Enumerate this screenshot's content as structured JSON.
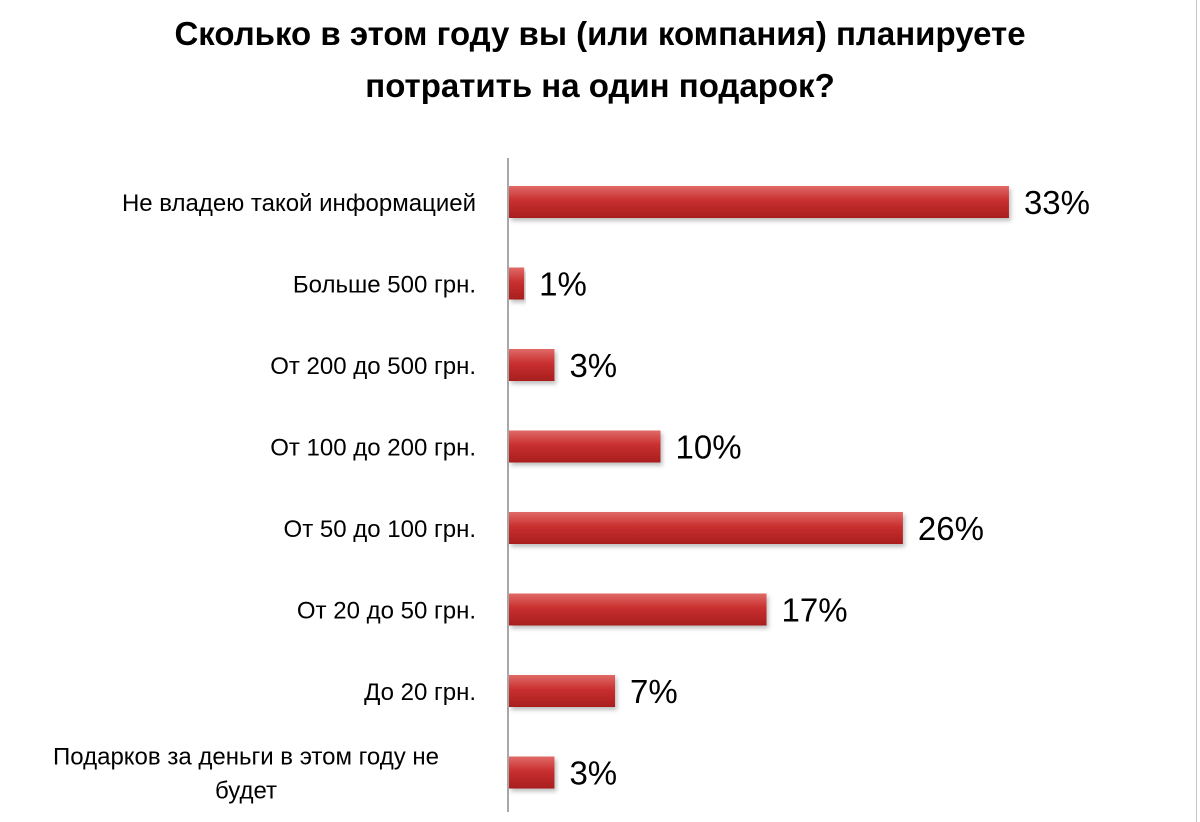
{
  "chart_data": {
    "type": "bar",
    "orientation": "horizontal",
    "title_lines": [
      "Сколько в этом году вы (или компания) планируете",
      "потратить на один подарок?"
    ],
    "categories": [
      [
        "Не владею такой информацией"
      ],
      [
        "Больше 500 грн."
      ],
      [
        "От 200 до 500 грн."
      ],
      [
        "От 100 до 200 грн."
      ],
      [
        "От 50 до 100 грн."
      ],
      [
        "От 20 до 50 грн."
      ],
      [
        "До 20 грн."
      ],
      [
        "Подарков за деньги в этом году не",
        "будет"
      ]
    ],
    "values": [
      33,
      1,
      3,
      10,
      26,
      17,
      7,
      3
    ],
    "value_labels": [
      "33%",
      "1%",
      "3%",
      "10%",
      "26%",
      "17%",
      "7%",
      "3%"
    ],
    "unit": "%",
    "xlim": [
      0,
      35
    ],
    "grid": false,
    "legend": "none",
    "bar_color": "#c8302f",
    "bar_gradient_light": "#e06a67",
    "bar_gradient_dark": "#a81e1e"
  }
}
